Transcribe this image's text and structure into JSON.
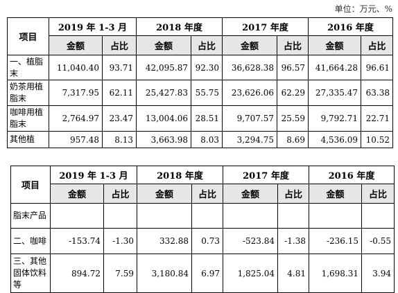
{
  "unit_label": "单位：万元、%",
  "table1": {
    "item_header": "项目",
    "periods": [
      "2019 年 1-3 月",
      "2018 年度",
      "2017 年度",
      "2016 年度"
    ],
    "amount_label": "金额",
    "ratio_label": "占比",
    "rows": [
      {
        "name": "一、植脂末",
        "values": [
          "11,040.40",
          "93.71",
          "42,095.87",
          "92.30",
          "36,628.38",
          "96.57",
          "41,664.28",
          "96.61"
        ]
      },
      {
        "name": "奶茶用植脂末",
        "values": [
          "7,317.95",
          "62.11",
          "25,427.83",
          "55.75",
          "23,626.06",
          "62.29",
          "27,335.47",
          "63.38"
        ]
      },
      {
        "name": "咖啡用植脂末",
        "values": [
          "2,764.97",
          "23.47",
          "13,004.06",
          "28.51",
          "9,707.57",
          "25.59",
          "9,792.71",
          "22.71"
        ]
      },
      {
        "name": "其他植",
        "values": [
          "957.48",
          "8.13",
          "3,663.98",
          "8.03",
          "3,294.75",
          "8.69",
          "4,536.09",
          "10.52"
        ]
      }
    ]
  },
  "table2": {
    "item_header": "项目",
    "periods": [
      "2019 年 1-3 月",
      "2018 年度",
      "2017 年度",
      "2016 年度"
    ],
    "amount_label": "金额",
    "ratio_label": "占比",
    "rows": [
      {
        "name": "脂末产品",
        "values": [
          "",
          "",
          "",
          "",
          "",
          "",
          "",
          ""
        ]
      },
      {
        "name": "二、咖啡",
        "values": [
          "-153.74",
          "-1.30",
          "332.88",
          "0.73",
          "-523.84",
          "-1.38",
          "-236.15",
          "-0.55"
        ]
      },
      {
        "name": "三、其他固体饮料等",
        "values": [
          "894.72",
          "7.59",
          "3,180.84",
          "6.97",
          "1,825.04",
          "4.81",
          "1,698.31",
          "3.94"
        ]
      }
    ]
  }
}
